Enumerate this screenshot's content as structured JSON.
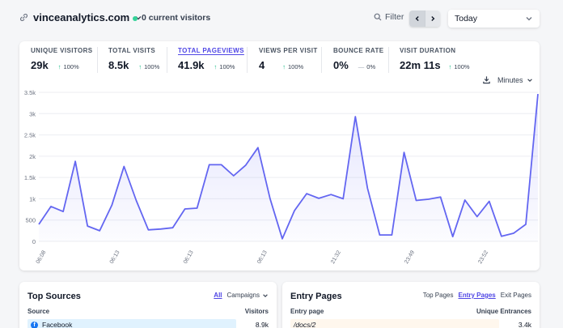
{
  "header": {
    "site_name": "vinceanalytics.com",
    "current_visitors": "0 current visitors",
    "filter_label": "Filter",
    "period": "Today"
  },
  "stats": [
    {
      "label": "UNIQUE VISITORS",
      "value": "29k",
      "change": "100%",
      "trend": "up"
    },
    {
      "label": "TOTAL VISITS",
      "value": "8.5k",
      "change": "100%",
      "trend": "up"
    },
    {
      "label": "TOTAL PAGEVIEWS",
      "value": "41.9k",
      "change": "100%",
      "trend": "up",
      "active": true
    },
    {
      "label": "VIEWS PER VISIT",
      "value": "4",
      "change": "100%",
      "trend": "up"
    },
    {
      "label": "BOUNCE RATE",
      "value": "0%",
      "change": "0%",
      "trend": "flat"
    },
    {
      "label": "VISIT DURATION",
      "value": "22m 11s",
      "change": "100%",
      "trend": "up"
    }
  ],
  "chart_controls": {
    "interval": "Minutes",
    "download_icon": "download-icon"
  },
  "chart_data": {
    "type": "area",
    "ylim": [
      0,
      3500
    ],
    "y_ticks": [
      0,
      500,
      1000,
      1500,
      2000,
      2500,
      3000,
      3500
    ],
    "y_tick_labels": [
      "0",
      "500",
      "1k",
      "1.5k",
      "2k",
      "2.5k",
      "3k",
      "3.5k"
    ],
    "x_tick_labels": [
      "06:08",
      "06:13",
      "06:13",
      "06:13",
      "21:32",
      "23:49",
      "23:52"
    ],
    "grid": true,
    "color": "#6366f1",
    "series": [
      {
        "values": [
          400,
          820,
          700,
          1880,
          360,
          250,
          850,
          1760,
          960,
          270,
          290,
          320,
          760,
          780,
          1800,
          1800,
          1540,
          1790,
          2200,
          1000,
          60,
          720,
          1120,
          1010,
          1100,
          1000,
          2930,
          1250,
          150,
          150,
          2090,
          960,
          990,
          1040,
          110,
          970,
          580,
          940,
          120,
          190,
          400,
          3460
        ]
      }
    ]
  },
  "top_sources": {
    "title": "Top Sources",
    "tabs": [
      "All",
      "Campaigns"
    ],
    "col_left": "Source",
    "col_right": "Visitors",
    "rows": [
      {
        "label": "Facebook",
        "value": "8.9k"
      }
    ]
  },
  "entry_pages": {
    "title": "Entry Pages",
    "tabs": [
      "Top Pages",
      "Entry Pages",
      "Exit Pages"
    ],
    "col_left": "Entry page",
    "col_right": "Unique Entrances",
    "rows": [
      {
        "label": "/docs/2",
        "value": "3.4k"
      }
    ]
  }
}
